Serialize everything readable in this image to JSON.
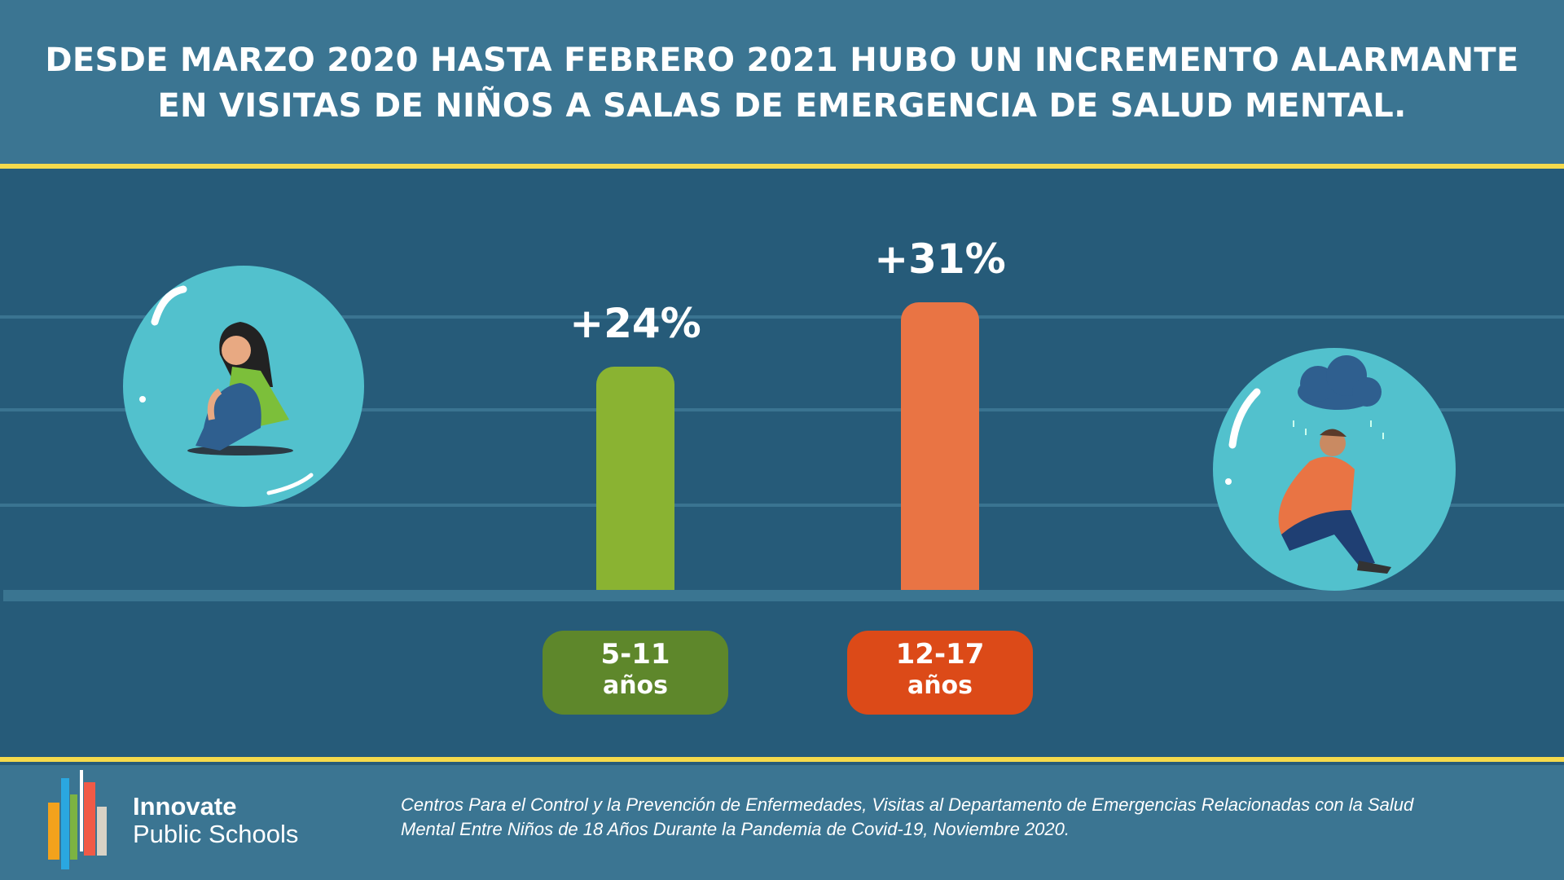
{
  "header": {
    "title_line1": "DESDE MARZO 2020 HASTA FEBRERO 2021 HUBO UN INCREMENTO ALARMANTE",
    "title_line2": "EN VISITAS DE NIÑOS A SALAS DE EMERGENCIA DE SALUD MENTAL."
  },
  "chart_data": {
    "type": "bar",
    "title": "DESDE MARZO 2020 HASTA FEBRERO 2021 HUBO UN INCREMENTO ALARMANTE EN VISITAS DE NIÑOS A SALAS DE EMERGENCIA DE SALUD MENTAL.",
    "categories": [
      {
        "line1": "5-11",
        "line2": "años"
      },
      {
        "line1": "12-17",
        "line2": "años"
      }
    ],
    "values": [
      24,
      31
    ],
    "data_labels": [
      "+24%",
      "+31%"
    ],
    "colors": [
      "#8ab332",
      "#e97444"
    ],
    "pill_colors": [
      "#5e872b",
      "#dc4a18"
    ],
    "xlabel": "",
    "ylabel": "",
    "ylim": [
      0,
      35
    ],
    "grid": true
  },
  "footer": {
    "brand_line1": "Innovate",
    "brand_line2": "Public Schools",
    "citation_line1": "Centros Para el Control y la Prevención de Enfermedades, Visitas al Departamento de Emergencias Relacionadas con la Salud",
    "citation_line2": "Mental Entre Niños de 18 Años Durante la Pandemia de Covid-19, Noviembre 2020."
  }
}
